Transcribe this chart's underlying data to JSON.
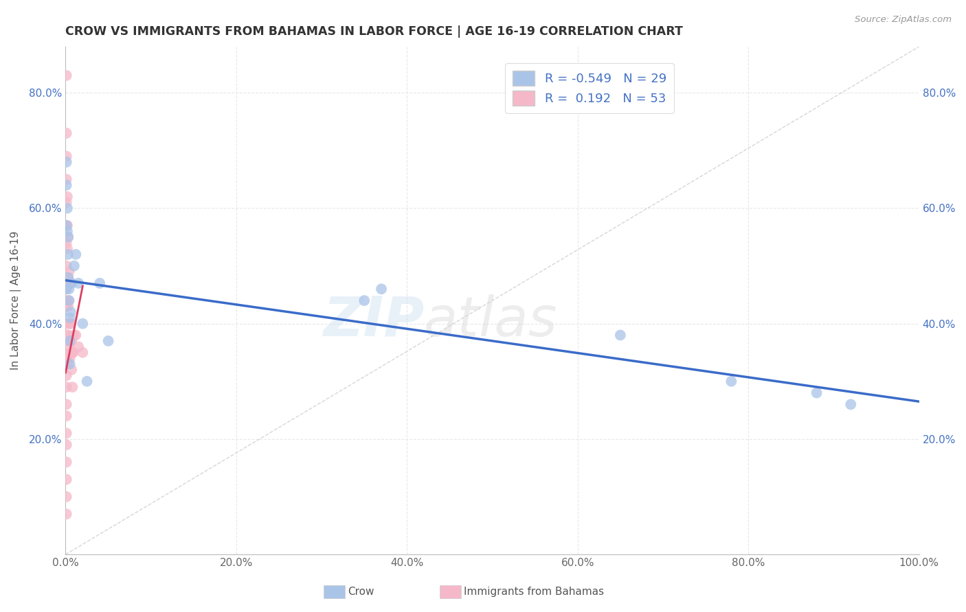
{
  "title": "CROW VS IMMIGRANTS FROM BAHAMAS IN LABOR FORCE | AGE 16-19 CORRELATION CHART",
  "source": "Source: ZipAtlas.com",
  "ylabel": "In Labor Force | Age 16-19",
  "legend_labels": [
    "Crow",
    "Immigrants from Bahamas"
  ],
  "legend_r_crow": "R = -0.549",
  "legend_n_crow": "N = 29",
  "legend_r_bah": "R =  0.192",
  "legend_n_bah": "N = 53",
  "crow_color": "#aac4e8",
  "bahamas_color": "#f5b8c8",
  "crow_line_color": "#3a6bc9",
  "bahamas_line_color": "#d94060",
  "crow_x": [
    0.001,
    0.001,
    0.001,
    0.001,
    0.002,
    0.002,
    0.003,
    0.003,
    0.003,
    0.004,
    0.004,
    0.005,
    0.005,
    0.005,
    0.006,
    0.007,
    0.01,
    0.012,
    0.015,
    0.02,
    0.025,
    0.04,
    0.05,
    0.35,
    0.37,
    0.65,
    0.78,
    0.88,
    0.92
  ],
  "crow_y": [
    0.68,
    0.64,
    0.57,
    0.46,
    0.6,
    0.56,
    0.55,
    0.52,
    0.48,
    0.46,
    0.44,
    0.41,
    0.37,
    0.33,
    0.42,
    0.47,
    0.5,
    0.52,
    0.47,
    0.4,
    0.3,
    0.47,
    0.37,
    0.44,
    0.46,
    0.38,
    0.3,
    0.28,
    0.26
  ],
  "bahamas_x": [
    0.001,
    0.001,
    0.001,
    0.001,
    0.001,
    0.001,
    0.001,
    0.001,
    0.001,
    0.001,
    0.001,
    0.001,
    0.001,
    0.001,
    0.001,
    0.001,
    0.001,
    0.001,
    0.001,
    0.001,
    0.001,
    0.001,
    0.001,
    0.002,
    0.002,
    0.002,
    0.002,
    0.002,
    0.002,
    0.002,
    0.003,
    0.003,
    0.003,
    0.003,
    0.003,
    0.004,
    0.004,
    0.004,
    0.004,
    0.005,
    0.005,
    0.005,
    0.006,
    0.006,
    0.007,
    0.007,
    0.008,
    0.008,
    0.009,
    0.01,
    0.012,
    0.015,
    0.02
  ],
  "bahamas_y": [
    0.83,
    0.73,
    0.69,
    0.65,
    0.61,
    0.57,
    0.54,
    0.5,
    0.46,
    0.43,
    0.4,
    0.37,
    0.34,
    0.31,
    0.29,
    0.26,
    0.24,
    0.21,
    0.19,
    0.16,
    0.13,
    0.1,
    0.07,
    0.62,
    0.57,
    0.53,
    0.47,
    0.44,
    0.38,
    0.34,
    0.55,
    0.48,
    0.43,
    0.38,
    0.33,
    0.49,
    0.44,
    0.4,
    0.36,
    0.47,
    0.4,
    0.34,
    0.4,
    0.35,
    0.37,
    0.32,
    0.35,
    0.29,
    0.35,
    0.38,
    0.38,
    0.36,
    0.35
  ],
  "xlim": [
    0.0,
    1.0
  ],
  "ylim": [
    0.0,
    0.88
  ],
  "xticks": [
    0.0,
    0.2,
    0.4,
    0.6,
    0.8,
    1.0
  ],
  "yticks": [
    0.2,
    0.4,
    0.6,
    0.8
  ],
  "xticklabels": [
    "0.0%",
    "20.0%",
    "40.0%",
    "60.0%",
    "80.0%",
    "100.0%"
  ],
  "yticklabels_left": [
    "20.0%",
    "40.0%",
    "60.0%",
    "80.0%"
  ],
  "yticklabels_right": [
    "20.0%",
    "40.0%",
    "60.0%",
    "80.0%"
  ],
  "watermark_zip": "ZIP",
  "watermark_atlas": "atlas",
  "background_color": "#ffffff",
  "grid_color": "#e8e8e8"
}
